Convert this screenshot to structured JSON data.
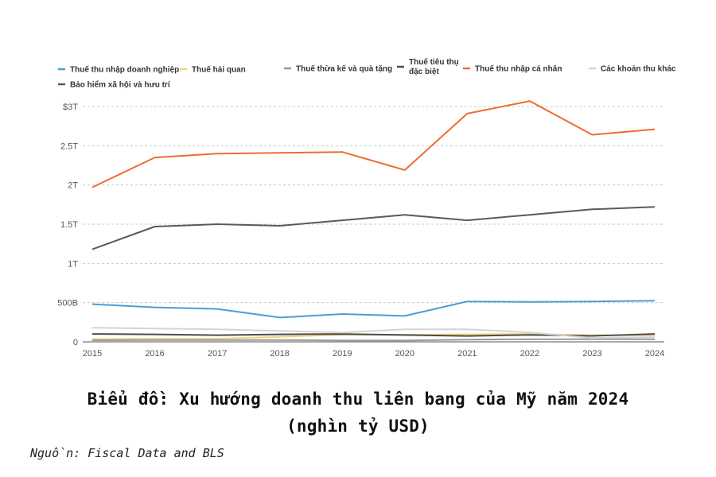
{
  "chart_data": {
    "type": "line",
    "title_line1": "Biểu đồ: Xu hướng doanh thu liên bang của Mỹ năm 2024",
    "title_line2": "(nghìn tỷ USD)",
    "source": "Nguồn: Fiscal Data and BLS",
    "x": [
      "2015",
      "2016",
      "2017",
      "2018",
      "2019",
      "2020",
      "2021",
      "2022",
      "2023",
      "2024"
    ],
    "ylim": [
      0,
      3000
    ],
    "yticks": [
      {
        "value": 0,
        "label": "0"
      },
      {
        "value": 500,
        "label": "500B"
      },
      {
        "value": 1000,
        "label": "1T"
      },
      {
        "value": 1500,
        "label": "1.5T"
      },
      {
        "value": 2000,
        "label": "2T"
      },
      {
        "value": 2500,
        "label": "2.5T"
      },
      {
        "value": 3000,
        "label": "$3T"
      }
    ],
    "grid": true,
    "legend_position": "top",
    "series": [
      {
        "name": "Thuế thu nhập doanh nghiệp",
        "color": "#4a9fd4",
        "values": [
          480,
          440,
          420,
          310,
          355,
          330,
          515,
          510,
          515,
          525
        ]
      },
      {
        "name": "Thuế hải quan",
        "color": "#f5d27a",
        "values": [
          35,
          40,
          40,
          65,
          90,
          90,
          95,
          100,
          85,
          85
        ]
      },
      {
        "name": "Thuế thừa kế và quà tặng",
        "color": "#999999",
        "values": [
          20,
          22,
          22,
          23,
          17,
          18,
          27,
          33,
          34,
          32
        ]
      },
      {
        "name": "Thuế tiêu thụ đặc biệt",
        "color": "#4d4d4d",
        "values": [
          100,
          95,
          85,
          95,
          100,
          87,
          75,
          88,
          76,
          100
        ]
      },
      {
        "name": "Thuế thu nhập cá nhân",
        "color": "#ee6d2e",
        "values": [
          1970,
          2350,
          2400,
          2410,
          2420,
          2190,
          2910,
          3070,
          2640,
          2710
        ]
      },
      {
        "name": "Các khoản thu khác",
        "color": "#d4d4d4",
        "values": [
          180,
          170,
          160,
          140,
          120,
          160,
          160,
          120,
          50,
          60
        ]
      },
      {
        "name": "Bảo hiểm xã hội và hưu trí",
        "color": "#5a5a5a",
        "values": [
          1180,
          1470,
          1500,
          1480,
          1550,
          1620,
          1550,
          1620,
          1690,
          1720
        ]
      }
    ]
  }
}
